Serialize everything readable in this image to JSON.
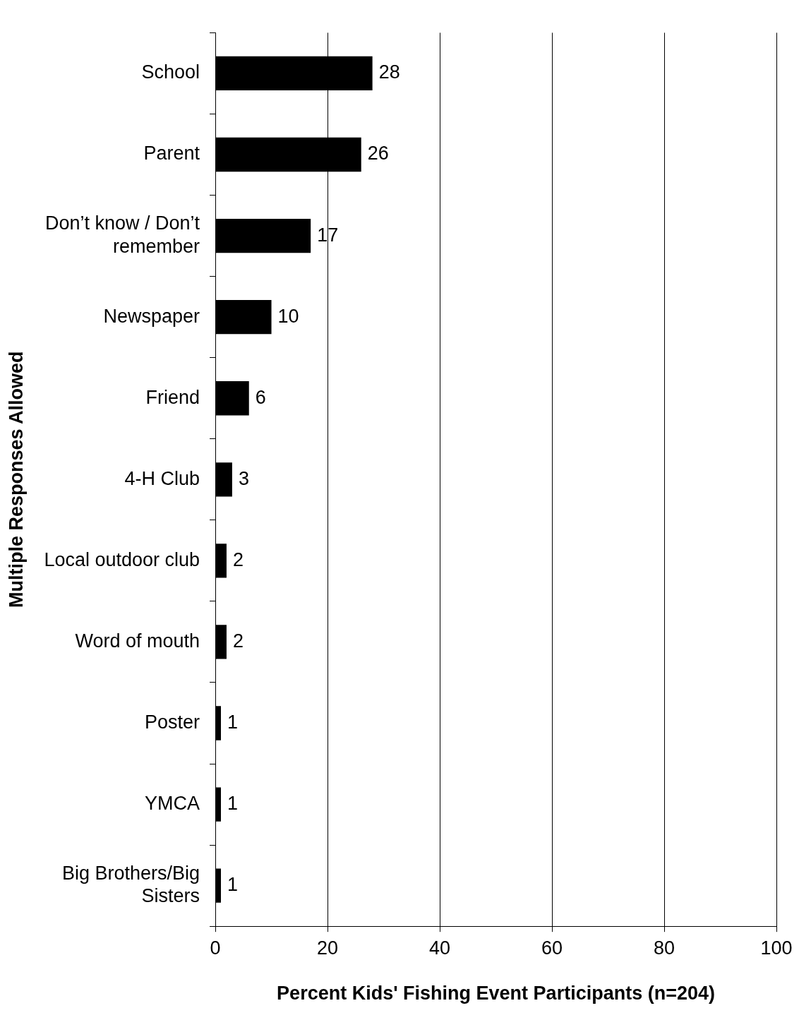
{
  "chart_data": {
    "type": "bar",
    "orientation": "horizontal",
    "xlabel": "Percent Kids' Fishing Event Participants (n=204)",
    "ylabel": "Multiple Responses Allowed",
    "categories": [
      "School",
      "Parent",
      "Don’t know / Don’t remember",
      "Newspaper",
      "Friend",
      "4-H Club",
      "Local outdoor club",
      "Word of mouth",
      "Poster",
      "YMCA",
      "Big Brothers/Big Sisters"
    ],
    "values": [
      28,
      26,
      17,
      10,
      6,
      3,
      2,
      2,
      1,
      1,
      1
    ],
    "color": "#000000",
    "xlim": [
      0,
      100
    ],
    "xticks": [
      0,
      20,
      40,
      60,
      80,
      100
    ],
    "grid": "x",
    "legend": false,
    "data_labels": true
  }
}
